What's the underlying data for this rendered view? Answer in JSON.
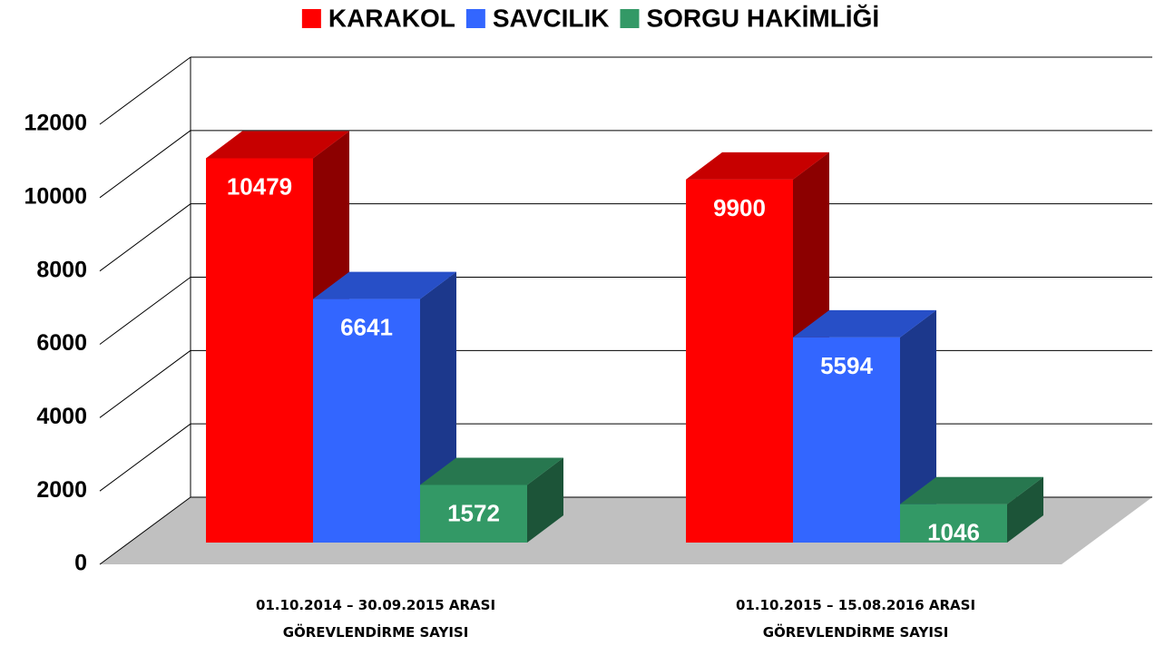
{
  "chart_data": {
    "type": "bar3d",
    "categories": [
      "01.10.2014 – 30.09.2015 ARASI\nGÖREVLENDİRME SAYISI",
      "01.10.2015 – 15.08.2016 ARASI\nGÖREVLENDİRME SAYISI"
    ],
    "series": [
      {
        "name": "KARAKOL",
        "color": "#ff0000",
        "values": [
          10479,
          9900
        ]
      },
      {
        "name": "SAVCILIK",
        "color": "#3366ff",
        "values": [
          6641,
          5594
        ]
      },
      {
        "name": "SORGU HAKİMLİĞİ",
        "color": "#339966",
        "values": [
          1572,
          1046
        ]
      }
    ],
    "ylim": [
      0,
      12000
    ],
    "yticks": [
      0,
      2000,
      4000,
      6000,
      8000,
      10000,
      12000
    ],
    "grid": true
  }
}
